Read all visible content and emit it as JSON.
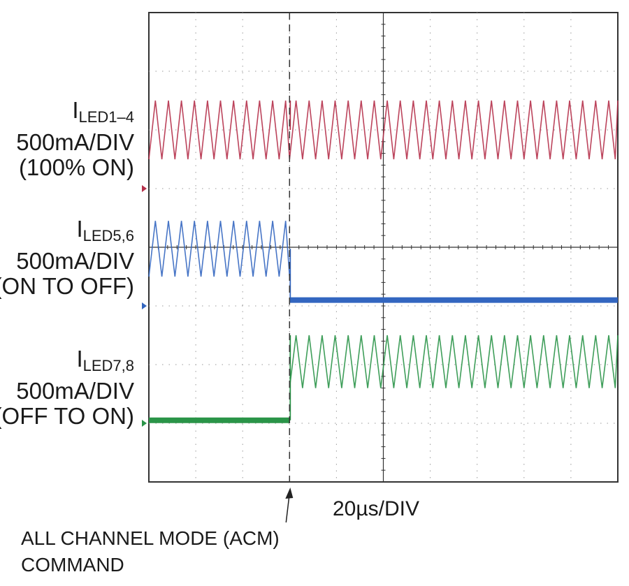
{
  "chart_data": {
    "type": "line",
    "title": "",
    "x_axis": {
      "label": "20µs/DIV",
      "divisions": 10,
      "unit_per_division": "20µs"
    },
    "y_axis": {
      "divisions": 8
    },
    "grid": true,
    "event": {
      "label_line1": "ALL CHANNEL MODE (ACM)",
      "label_line2": "COMMAND",
      "time_div": 3
    },
    "series": [
      {
        "name_main": "I",
        "name_sub": "LED1–4",
        "scale": "500mA/DIV",
        "state": "(100% ON)",
        "color": "#b5304a",
        "ground_div": 5,
        "before": {
          "mode": "ripple",
          "low_div": 5.5,
          "high_div": 6.5
        },
        "after": {
          "mode": "ripple",
          "low_div": 5.5,
          "high_div": 6.5
        },
        "cycles_per_div": 3.6
      },
      {
        "name_main": "I",
        "name_sub": "LED5,6",
        "scale": "500mA/DIV",
        "state": "(ON TO OFF)",
        "color": "#3366c0",
        "ground_div": 3,
        "before": {
          "mode": "ripple",
          "low_div": 3.5,
          "high_div": 4.45
        },
        "after": {
          "mode": "flat",
          "level_div": 3.1
        },
        "cycles_per_div": 3.6
      },
      {
        "name_main": "I",
        "name_sub": "LED7,8",
        "scale": "500mA/DIV",
        "state": "(OFF TO ON)",
        "color": "#2a9448",
        "ground_div": 1,
        "before": {
          "mode": "flat",
          "level_div": 1.05
        },
        "after": {
          "mode": "ripple",
          "low_div": 1.6,
          "high_div": 2.5
        },
        "cycles_per_div": 3.6
      }
    ]
  }
}
